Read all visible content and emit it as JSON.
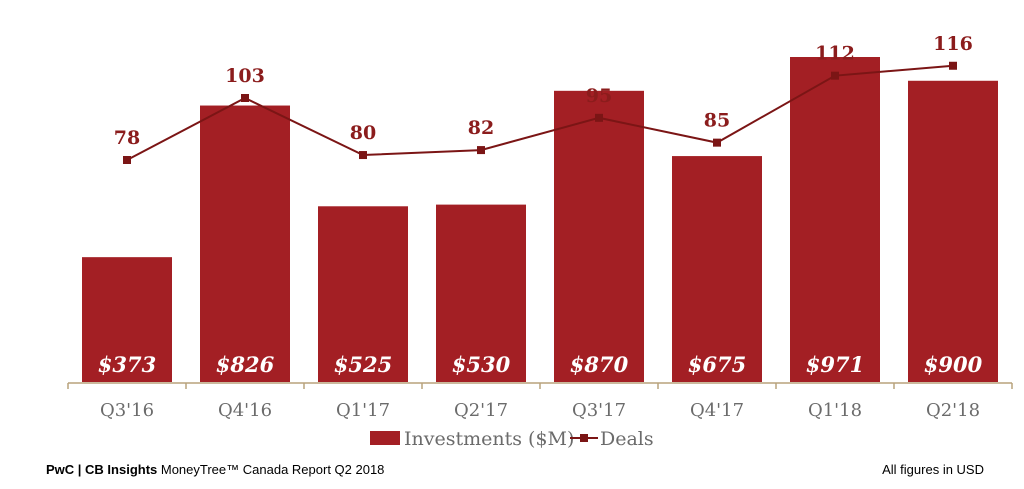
{
  "chart_data": {
    "type": "bar",
    "categories": [
      "Q3'16",
      "Q4'16",
      "Q1'17",
      "Q2'17",
      "Q3'17",
      "Q4'17",
      "Q1'18",
      "Q2'18"
    ],
    "series": [
      {
        "name": "Investments ($M)",
        "kind": "bar",
        "color": "#a31f24",
        "values": [
          373,
          826,
          525,
          530,
          870,
          675,
          971,
          900
        ],
        "labels": [
          "$373",
          "$826",
          "$525",
          "$530",
          "$870",
          "$675",
          "$971",
          "$900"
        ]
      },
      {
        "name": "Deals",
        "kind": "line",
        "color": "#7b1515",
        "values": [
          78,
          103,
          80,
          82,
          95,
          85,
          112,
          116
        ]
      }
    ],
    "legend_position": "bottom",
    "grid": false
  },
  "footer": {
    "brand": "PwC | CB Insights",
    "report": " MoneyTree™ Canada Report Q2 2018",
    "note": "All figures in USD"
  }
}
